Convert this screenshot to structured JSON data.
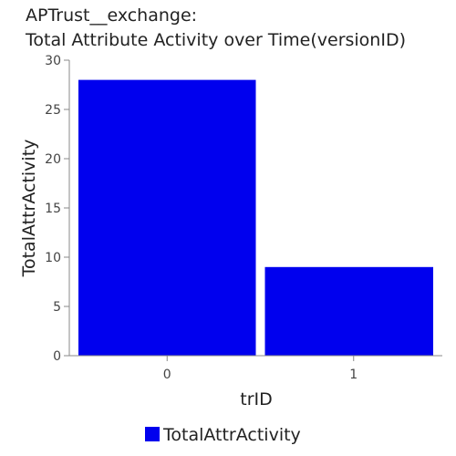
{
  "chart_data": {
    "type": "bar",
    "title_lines": [
      "APTrust__exchange:",
      "Total Attribute Activity over Time(versionID)"
    ],
    "xlabel": "trID",
    "ylabel": "TotalAttrActivity",
    "categories": [
      "0",
      "1"
    ],
    "series": [
      {
        "name": "TotalAttrActivity",
        "values": [
          28,
          9
        ],
        "color": "#0000ee"
      }
    ],
    "ylim": [
      0,
      30
    ],
    "yticks": [
      0,
      5,
      10,
      15,
      20,
      25,
      30
    ],
    "grid": false,
    "legend_position": "bottom"
  }
}
